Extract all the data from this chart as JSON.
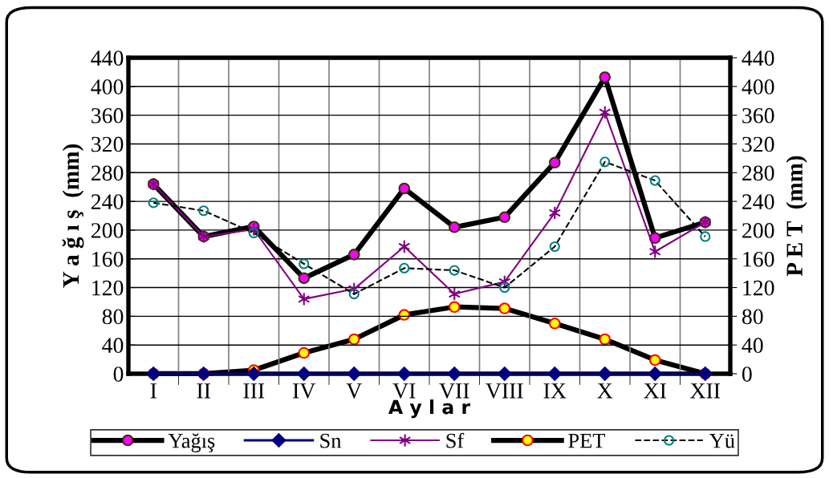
{
  "chart_data": {
    "type": "line",
    "categories": [
      "I",
      "II",
      "III",
      "IV",
      "V",
      "VI",
      "VII",
      "VIII",
      "IX",
      "X",
      "XI",
      "XII"
    ],
    "series": [
      {
        "name": "Yağış",
        "color": "#000000",
        "marker": "circle",
        "line_style": "solid",
        "values": [
          264,
          191,
          205,
          133,
          166,
          258,
          204,
          218,
          294,
          413,
          189,
          211
        ]
      },
      {
        "name": "Sn",
        "color": "#000080",
        "marker": "diamond",
        "line_style": "solid",
        "values": [
          0,
          0,
          0,
          0,
          0,
          0,
          0,
          0,
          0,
          0,
          0,
          0
        ]
      },
      {
        "name": "Sf",
        "color": "#800080",
        "marker": "cross",
        "line_style": "solid",
        "values": [
          264,
          191,
          201,
          104,
          118,
          177,
          111,
          128,
          224,
          364,
          170,
          211
        ]
      },
      {
        "name": "PET",
        "color": "#000000",
        "marker": "circle",
        "line_style": "solid",
        "axis": "y2",
        "values": [
          0,
          0,
          5,
          29,
          48,
          82,
          93,
          91,
          70,
          48,
          19,
          0
        ]
      },
      {
        "name": "Yü",
        "color": "#000000",
        "marker": "circle",
        "line_style": "dashed",
        "values": [
          238,
          227,
          196,
          153,
          111,
          147,
          144,
          120,
          177,
          295,
          269,
          191
        ]
      }
    ],
    "xlabel": "A y l a r",
    "ylabel": "Y a ğ ı ş  (mm)",
    "y2label": "P E T  (mm)",
    "ylim": [
      0,
      440
    ],
    "yticks": [
      0,
      40,
      80,
      120,
      160,
      200,
      240,
      280,
      320,
      360,
      400,
      440
    ],
    "y2lim": [
      0,
      440
    ],
    "y2ticks": [
      0,
      40,
      80,
      120,
      160,
      200,
      240,
      280,
      320,
      360,
      400,
      440
    ],
    "grid": true,
    "legend": "bottom"
  }
}
